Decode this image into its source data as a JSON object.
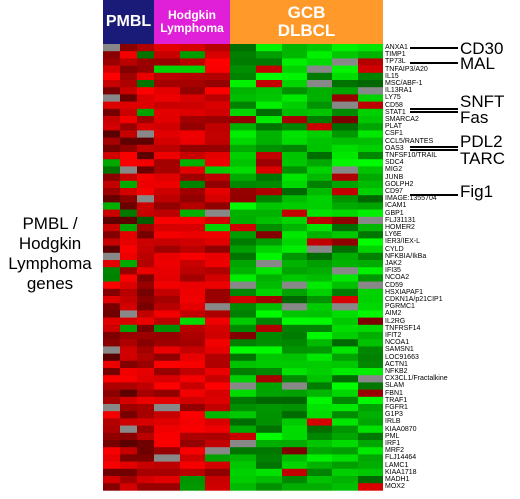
{
  "header": {
    "pmbl": "PMBL",
    "hodgkin_1": "Hodgkin",
    "hodgkin_2": "Lymphoma",
    "gcb_1": "GCB",
    "gcb_2": "DLBCL"
  },
  "side_label": {
    "line1": "PMBL /",
    "line2": "Hodgkin",
    "line3": "Lymphoma",
    "line4": "genes"
  },
  "colors": {
    "pmbl": "#1a1a78",
    "hodgkin": "#e020d8",
    "gcb": "#ff9a2a",
    "high": "#ff0000",
    "low": "#00ff00",
    "missing": "#888888"
  },
  "genes": [
    "ANXA1",
    "TIMP1",
    "TP73L",
    "TNFAIP3/A20",
    "IL15",
    "MSC/ABF-1",
    "IL13RA1",
    "LY75",
    "CD58",
    "STAT1",
    "SMARCA2",
    "PLAT",
    "CSF1",
    "CCL5/RANTES",
    "OAS3",
    "TNFSF10/TRAIL",
    "SDC4",
    "MIG2",
    "JUNB",
    "GOLPH2",
    "CD97",
    "IMAGE:1355704",
    "ICAM1",
    "GBP1",
    "FLJ31131",
    "HOMER2",
    "LY6E",
    "IER3/IEX-L",
    "CYLD",
    "NFKBIA/IkBa",
    "JAK2",
    "IFI35",
    "NCOA2",
    "CD59",
    "HSXIAPAF1",
    "CDKN1A/p21CIP1",
    "PGRMC1",
    "AIM2",
    "IL2RG",
    "TNFRSF14",
    "IFIT2",
    "NCOA1",
    "SAMSN1",
    "LOC91663",
    "ACTN1",
    "NFKB2",
    "CX3CL1/Fractalkine",
    "SLAM",
    "FBN1",
    "TRAF1",
    "FGFR1",
    "G1P3",
    "IRLB",
    "KIAA0870",
    "PML",
    "IRF1",
    "MRF2",
    "FLJ14464",
    "LAMC1",
    "KIAA1718",
    "MADH1",
    "MOX2"
  ],
  "markers": [
    {
      "label": "CD30"
    },
    {
      "label": "MAL"
    },
    {
      "label": "SNFT"
    },
    {
      "label": "Fas"
    },
    {
      "label": "PDL2"
    },
    {
      "label": "TARC"
    },
    {
      "label": "Fig1"
    }
  ]
}
